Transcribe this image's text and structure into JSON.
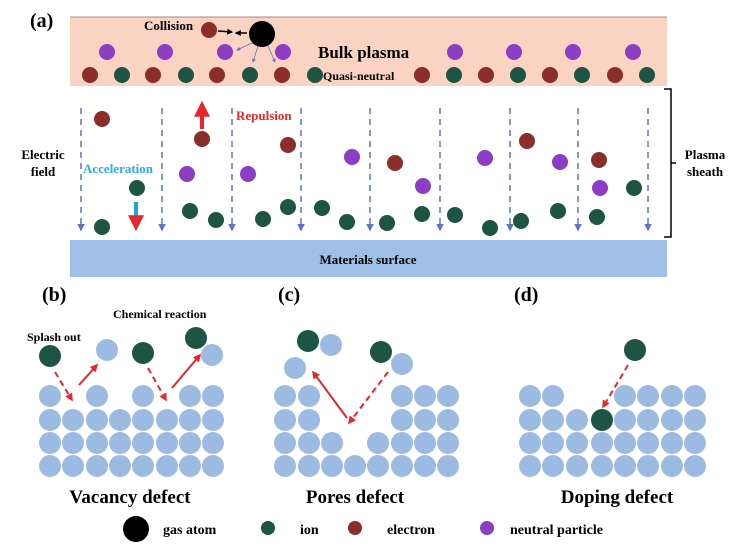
{
  "panel_a": {
    "label": "(a)",
    "collision": "Collision",
    "bulk_plasma": "Bulk plasma",
    "quasi_neutral": "Quasi-neutral",
    "repulsion": "Repulsion",
    "acceleration": "Acceleration",
    "electric_field_1": "Electric",
    "electric_field_2": "field",
    "plasma_sheath_1": "Plasma",
    "plasma_sheath_2": "sheath",
    "materials_surface": "Materials surface"
  },
  "panel_b": {
    "label": "(b)",
    "splash_out": "Splash out",
    "chemical_reaction": "Chemical reaction",
    "caption": "Vacancy defect"
  },
  "panel_c": {
    "label": "(c)",
    "caption": "Pores defect"
  },
  "panel_d": {
    "label": "(d)",
    "caption": "Doping defect"
  },
  "legend": [
    {
      "label": "gas atom",
      "color": "#000000"
    },
    {
      "label": "ion",
      "color": "#1e5443"
    },
    {
      "label": "electron",
      "color": "#8b2e2a"
    },
    {
      "label": "neutral particle",
      "color": "#8d3cc4"
    }
  ],
  "colors": {
    "bulk_plasma_bg": "#fbd3c3",
    "surface_bg": "#9fc0e6",
    "lattice_atom": "#9dbbe2",
    "field_line": "#5b74c8",
    "arrow_red": "#e8262b",
    "arrow_cyan": "#1ea4e6",
    "repulsion_text": "#e8262b",
    "acceleration_text": "#29a9e8"
  }
}
